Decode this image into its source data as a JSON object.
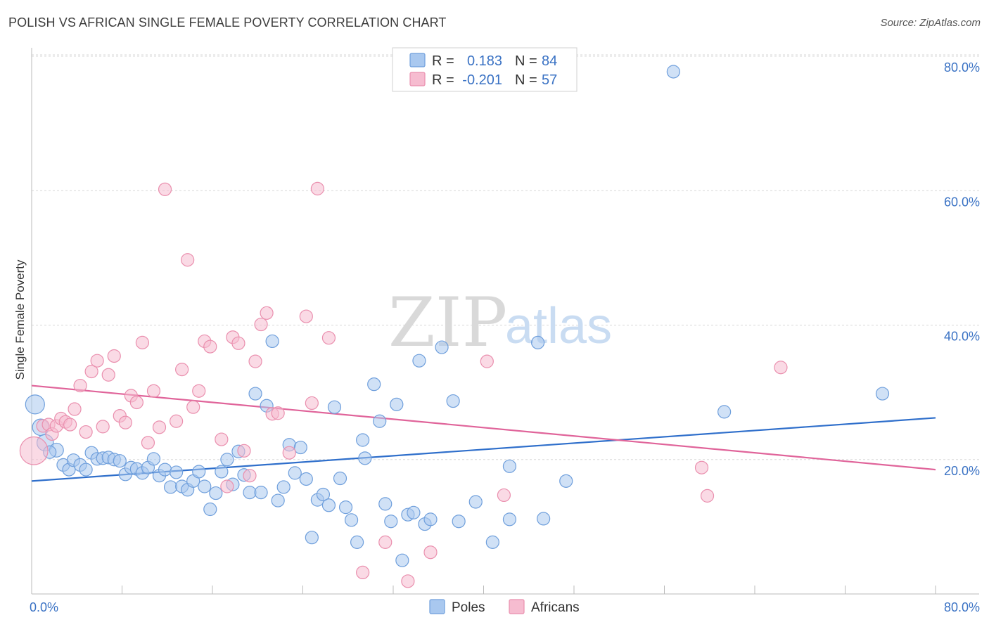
{
  "title": "POLISH VS AFRICAN SINGLE FEMALE POVERTY CORRELATION CHART",
  "source": "Source: ZipAtlas.com",
  "watermark": {
    "zip": "ZIP",
    "atlas": "atlas"
  },
  "colors": {
    "poles_fill": "#a9c8ef",
    "poles_stroke": "#6f9fdc",
    "poles_line": "#2f6fcb",
    "africans_fill": "#f6bcd0",
    "africans_stroke": "#ea8fae",
    "africans_line": "#e0649a",
    "grid": "#d8d8d8",
    "tick_label": "#3a72c4"
  },
  "legend": {
    "rows": [
      {
        "r_label": "R =",
        "r_value": "0.183",
        "n_label": "N =",
        "n_value": "84"
      },
      {
        "r_label": "R =",
        "r_value": "-0.201",
        "n_label": "N =",
        "n_value": "57"
      }
    ]
  },
  "bottom_legend": {
    "poles": "Poles",
    "africans": "Africans"
  },
  "chart_data": {
    "type": "scatter",
    "title": "POLISH VS AFRICAN SINGLE FEMALE POVERTY CORRELATION CHART",
    "xlabel": "",
    "ylabel": "Single Female Poverty",
    "xlim": [
      0,
      80
    ],
    "ylim": [
      0,
      82
    ],
    "x_tick_labels": [
      "0.0%",
      "80.0%"
    ],
    "y_ticks": [
      20,
      40,
      60,
      80
    ],
    "y_tick_labels": [
      "20.0%",
      "40.0%",
      "60.0%",
      "80.0%"
    ],
    "grid": true,
    "legend_position": "top-center",
    "series": [
      {
        "name": "Poles",
        "r": 0.183,
        "n": 84,
        "trend": {
          "x": [
            0,
            80
          ],
          "y": [
            16.8,
            26.2
          ]
        },
        "points": [
          [
            0.3,
            28.2,
            1.5
          ],
          [
            0.8,
            24.8,
            1.3
          ],
          [
            1.2,
            22.5,
            1.3
          ],
          [
            2.2,
            21.4,
            1.1
          ],
          [
            1.6,
            21.1,
            1
          ],
          [
            2.8,
            19.2,
            1
          ],
          [
            3.3,
            18.5,
            1
          ],
          [
            3.7,
            19.9,
            1
          ],
          [
            4.3,
            19.2,
            1
          ],
          [
            4.8,
            18.5,
            1
          ],
          [
            5.3,
            21.0,
            1
          ],
          [
            5.8,
            20.1,
            1
          ],
          [
            6.3,
            20.2,
            1
          ],
          [
            6.8,
            20.3,
            1
          ],
          [
            7.3,
            20.0,
            1
          ],
          [
            7.8,
            19.8,
            1
          ],
          [
            8.3,
            17.8,
            1
          ],
          [
            8.8,
            18.8,
            1
          ],
          [
            9.3,
            18.6,
            1
          ],
          [
            9.8,
            18.0,
            1
          ],
          [
            10.3,
            18.8,
            1
          ],
          [
            10.8,
            20.1,
            1
          ],
          [
            11.3,
            17.6,
            1
          ],
          [
            11.8,
            18.5,
            1
          ],
          [
            12.3,
            15.9,
            1
          ],
          [
            12.8,
            18.1,
            1
          ],
          [
            13.3,
            16.0,
            1
          ],
          [
            13.8,
            15.5,
            1
          ],
          [
            14.3,
            16.8,
            1
          ],
          [
            14.8,
            18.2,
            1
          ],
          [
            15.3,
            16.0,
            1
          ],
          [
            15.8,
            12.6,
            1
          ],
          [
            16.3,
            15.0,
            1
          ],
          [
            16.8,
            18.2,
            1
          ],
          [
            17.3,
            20.0,
            1
          ],
          [
            17.8,
            16.3,
            1
          ],
          [
            18.3,
            21.2,
            1
          ],
          [
            18.8,
            17.7,
            1
          ],
          [
            19.3,
            15.1,
            1
          ],
          [
            19.8,
            29.8,
            1
          ],
          [
            20.3,
            15.1,
            1
          ],
          [
            20.8,
            28.0,
            1
          ],
          [
            21.3,
            37.6,
            1
          ],
          [
            21.8,
            13.9,
            1
          ],
          [
            22.3,
            15.9,
            1
          ],
          [
            22.8,
            22.2,
            1
          ],
          [
            23.3,
            18.0,
            1
          ],
          [
            23.8,
            21.8,
            1
          ],
          [
            24.3,
            17.1,
            1
          ],
          [
            24.8,
            8.4,
            1
          ],
          [
            25.3,
            14.0,
            1
          ],
          [
            25.8,
            14.8,
            1
          ],
          [
            26.3,
            13.2,
            1
          ],
          [
            26.8,
            27.8,
            1
          ],
          [
            27.3,
            17.2,
            1
          ],
          [
            27.8,
            12.9,
            1
          ],
          [
            28.3,
            11.0,
            1
          ],
          [
            28.8,
            7.7,
            1
          ],
          [
            29.3,
            22.9,
            1
          ],
          [
            29.5,
            20.2,
            1
          ],
          [
            30.3,
            31.2,
            1
          ],
          [
            30.8,
            25.7,
            1
          ],
          [
            31.3,
            13.4,
            1
          ],
          [
            31.8,
            10.8,
            1
          ],
          [
            32.3,
            28.2,
            1
          ],
          [
            32.8,
            5.0,
            1
          ],
          [
            33.3,
            11.8,
            1
          ],
          [
            33.8,
            12.1,
            1
          ],
          [
            34.3,
            34.7,
            1
          ],
          [
            34.8,
            10.4,
            1
          ],
          [
            35.3,
            11.1,
            1
          ],
          [
            36.3,
            36.7,
            1
          ],
          [
            37.3,
            28.7,
            1
          ],
          [
            37.8,
            10.8,
            1
          ],
          [
            39.3,
            13.7,
            1
          ],
          [
            40.8,
            7.7,
            1
          ],
          [
            42.3,
            11.1,
            1
          ],
          [
            44.8,
            37.4,
            1
          ],
          [
            45.3,
            11.2,
            1
          ],
          [
            47.3,
            16.8,
            1
          ],
          [
            56.8,
            77.7,
            1
          ],
          [
            61.3,
            27.1,
            1
          ],
          [
            75.3,
            29.8,
            1
          ],
          [
            42.3,
            19.0,
            1
          ]
        ]
      },
      {
        "name": "Africans",
        "r": -0.201,
        "n": 57,
        "trend": {
          "x": [
            0,
            80
          ],
          "y": [
            31.0,
            18.5
          ]
        },
        "points": [
          [
            0.2,
            21.3,
            2.2
          ],
          [
            1.0,
            25.0,
            1
          ],
          [
            1.5,
            25.2,
            1
          ],
          [
            1.8,
            23.8,
            1
          ],
          [
            2.2,
            25.0,
            1
          ],
          [
            2.6,
            26.1,
            1
          ],
          [
            3.0,
            25.6,
            1
          ],
          [
            3.4,
            25.2,
            1
          ],
          [
            3.8,
            27.5,
            1
          ],
          [
            4.3,
            31.0,
            1
          ],
          [
            4.8,
            24.1,
            1
          ],
          [
            5.3,
            33.1,
            1
          ],
          [
            5.8,
            34.7,
            1
          ],
          [
            6.3,
            24.9,
            1
          ],
          [
            6.8,
            32.6,
            1
          ],
          [
            7.3,
            35.4,
            1
          ],
          [
            7.8,
            26.5,
            1
          ],
          [
            8.3,
            25.5,
            1
          ],
          [
            8.8,
            29.5,
            1
          ],
          [
            9.3,
            28.5,
            1
          ],
          [
            9.8,
            37.4,
            1
          ],
          [
            10.3,
            22.5,
            1
          ],
          [
            10.8,
            30.2,
            1
          ],
          [
            11.3,
            24.8,
            1
          ],
          [
            11.8,
            60.2,
            1
          ],
          [
            12.8,
            25.7,
            1
          ],
          [
            13.3,
            33.4,
            1
          ],
          [
            13.8,
            49.7,
            1
          ],
          [
            14.3,
            27.8,
            1
          ],
          [
            14.8,
            30.2,
            1
          ],
          [
            15.3,
            37.6,
            1
          ],
          [
            15.8,
            36.8,
            1
          ],
          [
            16.8,
            23.0,
            1
          ],
          [
            17.3,
            16.0,
            1
          ],
          [
            17.8,
            38.2,
            1
          ],
          [
            18.3,
            37.3,
            1
          ],
          [
            18.8,
            21.3,
            1
          ],
          [
            19.3,
            17.6,
            1
          ],
          [
            19.8,
            34.6,
            1
          ],
          [
            20.3,
            40.1,
            1
          ],
          [
            20.8,
            41.8,
            1
          ],
          [
            21.3,
            26.8,
            1
          ],
          [
            21.8,
            26.9,
            1
          ],
          [
            22.8,
            21.0,
            1
          ],
          [
            24.3,
            41.3,
            1
          ],
          [
            24.8,
            28.4,
            1
          ],
          [
            25.3,
            60.3,
            1
          ],
          [
            26.3,
            38.1,
            1
          ],
          [
            29.3,
            3.2,
            1
          ],
          [
            31.3,
            7.7,
            1
          ],
          [
            33.3,
            1.9,
            1
          ],
          [
            35.3,
            6.2,
            1
          ],
          [
            40.3,
            34.6,
            1
          ],
          [
            41.8,
            14.7,
            1
          ],
          [
            59.8,
            14.6,
            1
          ],
          [
            59.3,
            18.8,
            1
          ],
          [
            66.3,
            33.7,
            1
          ]
        ]
      }
    ]
  }
}
